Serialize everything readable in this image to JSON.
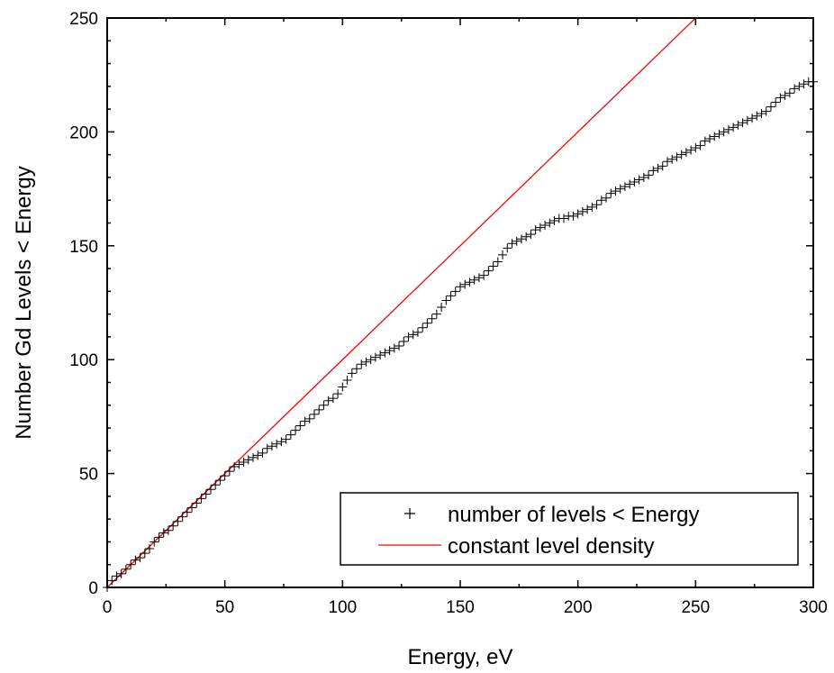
{
  "chart_data": {
    "type": "scatter",
    "title": "",
    "xlabel": "Energy, eV",
    "ylabel": "Number Gd Levels < Energy",
    "xlim": [
      0,
      300
    ],
    "ylim": [
      0,
      250
    ],
    "xticks": [
      "0",
      "50",
      "100",
      "150",
      "200",
      "250",
      "300"
    ],
    "yticks": [
      "0",
      "50",
      "100",
      "150",
      "200",
      "250"
    ],
    "legend_position": "bottom-right",
    "colors": {
      "scatter": "#000000",
      "line": "#ff0000"
    },
    "series": [
      {
        "name": "number of levels < Energy",
        "type": "scatter",
        "marker": "plus",
        "points": [
          [
            0,
            0
          ],
          [
            2,
            3
          ],
          [
            4,
            5
          ],
          [
            6,
            6
          ],
          [
            8,
            8
          ],
          [
            10,
            10
          ],
          [
            12,
            12
          ],
          [
            14,
            13
          ],
          [
            16,
            15
          ],
          [
            18,
            17
          ],
          [
            20,
            20
          ],
          [
            22,
            22
          ],
          [
            24,
            24
          ],
          [
            26,
            25
          ],
          [
            28,
            27
          ],
          [
            30,
            29
          ],
          [
            32,
            31
          ],
          [
            34,
            33
          ],
          [
            36,
            35
          ],
          [
            38,
            37
          ],
          [
            40,
            39
          ],
          [
            42,
            41
          ],
          [
            44,
            43
          ],
          [
            46,
            45
          ],
          [
            48,
            47
          ],
          [
            50,
            49
          ],
          [
            52,
            51
          ],
          [
            54,
            53
          ],
          [
            56,
            54
          ],
          [
            58,
            55
          ],
          [
            60,
            56
          ],
          [
            62,
            57
          ],
          [
            64,
            58
          ],
          [
            66,
            59
          ],
          [
            68,
            61
          ],
          [
            70,
            62
          ],
          [
            72,
            63
          ],
          [
            74,
            64
          ],
          [
            76,
            65
          ],
          [
            78,
            67
          ],
          [
            80,
            69
          ],
          [
            82,
            71
          ],
          [
            84,
            73
          ],
          [
            86,
            74
          ],
          [
            88,
            76
          ],
          [
            90,
            78
          ],
          [
            92,
            80
          ],
          [
            94,
            82
          ],
          [
            96,
            83
          ],
          [
            98,
            85
          ],
          [
            100,
            88
          ],
          [
            102,
            91
          ],
          [
            104,
            94
          ],
          [
            106,
            96
          ],
          [
            108,
            98
          ],
          [
            110,
            99
          ],
          [
            112,
            100
          ],
          [
            114,
            101
          ],
          [
            116,
            102
          ],
          [
            118,
            103
          ],
          [
            120,
            104
          ],
          [
            122,
            105
          ],
          [
            124,
            106
          ],
          [
            126,
            108
          ],
          [
            128,
            110
          ],
          [
            130,
            111
          ],
          [
            132,
            112
          ],
          [
            134,
            114
          ],
          [
            136,
            116
          ],
          [
            138,
            118
          ],
          [
            140,
            120
          ],
          [
            142,
            123
          ],
          [
            144,
            126
          ],
          [
            146,
            128
          ],
          [
            148,
            130
          ],
          [
            150,
            132
          ],
          [
            152,
            133
          ],
          [
            154,
            134
          ],
          [
            156,
            135
          ],
          [
            158,
            136
          ],
          [
            160,
            137
          ],
          [
            162,
            139
          ],
          [
            164,
            141
          ],
          [
            166,
            143
          ],
          [
            168,
            146
          ],
          [
            170,
            149
          ],
          [
            172,
            151
          ],
          [
            174,
            152
          ],
          [
            176,
            153
          ],
          [
            178,
            154
          ],
          [
            180,
            155
          ],
          [
            182,
            157
          ],
          [
            184,
            158
          ],
          [
            186,
            159
          ],
          [
            188,
            160
          ],
          [
            190,
            161
          ],
          [
            192,
            162
          ],
          [
            194,
            162
          ],
          [
            196,
            163
          ],
          [
            198,
            163
          ],
          [
            200,
            164
          ],
          [
            202,
            165
          ],
          [
            204,
            166
          ],
          [
            206,
            167
          ],
          [
            208,
            168
          ],
          [
            210,
            170
          ],
          [
            212,
            171
          ],
          [
            214,
            173
          ],
          [
            216,
            174
          ],
          [
            218,
            175
          ],
          [
            220,
            176
          ],
          [
            222,
            177
          ],
          [
            224,
            178
          ],
          [
            226,
            179
          ],
          [
            228,
            180
          ],
          [
            230,
            181
          ],
          [
            232,
            183
          ],
          [
            234,
            184
          ],
          [
            236,
            185
          ],
          [
            238,
            187
          ],
          [
            240,
            188
          ],
          [
            242,
            189
          ],
          [
            244,
            190
          ],
          [
            246,
            191
          ],
          [
            248,
            192
          ],
          [
            250,
            193
          ],
          [
            252,
            194
          ],
          [
            254,
            196
          ],
          [
            256,
            197
          ],
          [
            258,
            198
          ],
          [
            260,
            199
          ],
          [
            262,
            200
          ],
          [
            264,
            201
          ],
          [
            266,
            202
          ],
          [
            268,
            203
          ],
          [
            270,
            204
          ],
          [
            272,
            205
          ],
          [
            274,
            206
          ],
          [
            276,
            207
          ],
          [
            278,
            208
          ],
          [
            280,
            209
          ],
          [
            282,
            211
          ],
          [
            284,
            213
          ],
          [
            286,
            215
          ],
          [
            288,
            216
          ],
          [
            290,
            217
          ],
          [
            292,
            219
          ],
          [
            294,
            220
          ],
          [
            296,
            221
          ],
          [
            298,
            222
          ],
          [
            300,
            222
          ]
        ]
      },
      {
        "name": "constant level density",
        "type": "line",
        "points": [
          [
            0,
            0
          ],
          [
            250,
            250
          ]
        ]
      }
    ]
  }
}
